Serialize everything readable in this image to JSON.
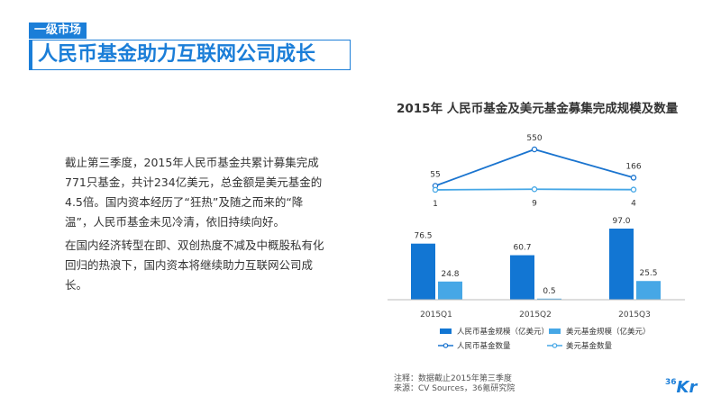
{
  "header": {
    "section_tag": "一级市场",
    "title": "人民币基金助力互联网公司成长"
  },
  "body": {
    "paragraph1": "截止第三季度，2015年人民币基金共累计募集完成771只基金，共计234亿美元，总金额是美元基金的4.5倍。国内资本经历了“狂热”及随之而来的“降温”，人民币基金未见冷清，依旧持续向好。",
    "paragraph2": "在国内经济转型在即、双创热度不减及中概股私有化回归的热浪下，国内资本将继续助力互联网公司成长。"
  },
  "chart_title": "2015年 人民币基金及美元基金募集完成规模及数量",
  "chart_data": [
    {
      "type": "line",
      "categories": [
        "2015Q1",
        "2015Q2",
        "2015Q3"
      ],
      "series": [
        {
          "name": "人民币基金数量",
          "values": [
            55,
            550,
            166
          ]
        },
        {
          "name": "美元基金数量",
          "values": [
            1,
            9,
            4
          ]
        }
      ]
    },
    {
      "type": "bar",
      "categories": [
        "2015Q1",
        "2015Q2",
        "2015Q3"
      ],
      "series": [
        {
          "name": "人民币基金规模（亿美元）",
          "values": [
            76.5,
            60.7,
            97.0
          ]
        },
        {
          "name": "美元基金规模（亿美元）",
          "values": [
            24.8,
            0.5,
            25.5
          ]
        }
      ]
    }
  ],
  "value_labels": {
    "line_rmb": [
      "55",
      "550",
      "166"
    ],
    "line_usd": [
      "1",
      "9",
      "4"
    ],
    "bar_rmb": [
      "76.5",
      "60.7",
      "97.0"
    ],
    "bar_usd": [
      "24.8",
      "0.5",
      "25.5"
    ]
  },
  "legend": [
    {
      "label": "人民币基金规模（亿美元）",
      "kind": "bar",
      "color": "#1276d3"
    },
    {
      "label": "美元基金规模（亿美元）",
      "kind": "bar",
      "color": "#46a7e6"
    },
    {
      "label": "人民币基金数量",
      "kind": "line",
      "color": "#1a74cf"
    },
    {
      "label": "美元基金数量",
      "kind": "line",
      "color": "#46a7e6"
    }
  ],
  "colors": {
    "brand": "#1b7ed8",
    "rmb": "#1276d3",
    "usd": "#46a7e6"
  },
  "notes": {
    "note1": "注释：数据截止2015年第三季度",
    "note2": "来源：CV Sources，36氪研究院"
  },
  "logo": {
    "num": "36",
    "kr": "Kr"
  }
}
